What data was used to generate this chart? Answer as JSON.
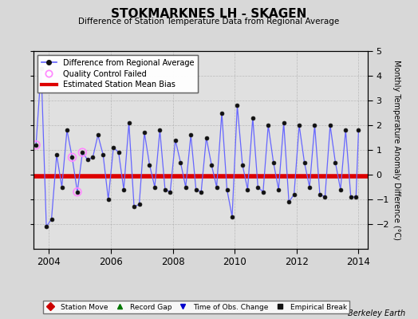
{
  "title": "STOKMARKNES LH - SKAGEN",
  "subtitle": "Difference of Station Temperature Data from Regional Average",
  "ylabel_right": "Monthly Temperature Anomaly Difference (°C)",
  "credit": "Berkeley Earth",
  "bias_value": -0.07,
  "xlim": [
    2003.5,
    2014.3
  ],
  "ylim": [
    -3,
    5
  ],
  "yticks_right": [
    -2,
    -1,
    0,
    1,
    2,
    3,
    4,
    5
  ],
  "yticks_left": [
    -2,
    -1,
    0,
    1,
    2,
    3,
    4,
    5
  ],
  "xticks": [
    2004,
    2006,
    2008,
    2010,
    2012,
    2014
  ],
  "bg_color": "#d8d8d8",
  "plot_bg_color": "#e0e0e0",
  "line_color": "#6666ff",
  "marker_color": "#000000",
  "bias_color": "#dd0000",
  "qc_color": "#ff88ff",
  "time_series": [
    2003.583,
    2003.75,
    2003.917,
    2004.083,
    2004.25,
    2004.417,
    2004.583,
    2004.75,
    2004.917,
    2005.083,
    2005.25,
    2005.417,
    2005.583,
    2005.75,
    2005.917,
    2006.083,
    2006.25,
    2006.417,
    2006.583,
    2006.75,
    2006.917,
    2007.083,
    2007.25,
    2007.417,
    2007.583,
    2007.75,
    2007.917,
    2008.083,
    2008.25,
    2008.417,
    2008.583,
    2008.75,
    2008.917,
    2009.083,
    2009.25,
    2009.417,
    2009.583,
    2009.75,
    2009.917,
    2010.083,
    2010.25,
    2010.417,
    2010.583,
    2010.75,
    2010.917,
    2011.083,
    2011.25,
    2011.417,
    2011.583,
    2011.75,
    2011.917,
    2012.083,
    2012.25,
    2012.417,
    2012.583,
    2012.75,
    2012.917,
    2013.083,
    2013.25,
    2013.417,
    2013.583,
    2013.75,
    2013.917,
    2014.0
  ],
  "values": [
    1.2,
    4.3,
    -2.1,
    -1.8,
    0.8,
    -0.5,
    1.8,
    0.7,
    -0.7,
    0.9,
    0.6,
    0.7,
    1.6,
    0.8,
    -1.0,
    1.1,
    0.9,
    -0.6,
    2.1,
    -1.3,
    -1.2,
    1.7,
    0.4,
    -0.5,
    1.8,
    -0.6,
    -0.7,
    1.4,
    0.5,
    -0.5,
    1.6,
    -0.6,
    -0.7,
    1.5,
    0.4,
    -0.5,
    2.5,
    -0.6,
    -1.7,
    2.8,
    0.4,
    -0.6,
    2.3,
    -0.5,
    -0.7,
    2.0,
    0.5,
    -0.6,
    2.1,
    -1.1,
    -0.8,
    2.0,
    0.5,
    -0.5,
    2.0,
    -0.8,
    -0.9,
    2.0,
    0.5,
    -0.6,
    1.8,
    -0.9,
    -0.9,
    1.8
  ],
  "qc_times": [
    2003.583,
    2004.75,
    2004.917,
    2005.083
  ],
  "qc_vals": [
    1.2,
    0.7,
    -0.7,
    0.9
  ],
  "legend_labels": {
    "line": "Difference from Regional Average",
    "qc": "Quality Control Failed",
    "bias": "Estimated Station Mean Bias",
    "station_move": "Station Move",
    "record_gap": "Record Gap",
    "time_obs": "Time of Obs. Change",
    "empirical": "Empirical Break"
  }
}
